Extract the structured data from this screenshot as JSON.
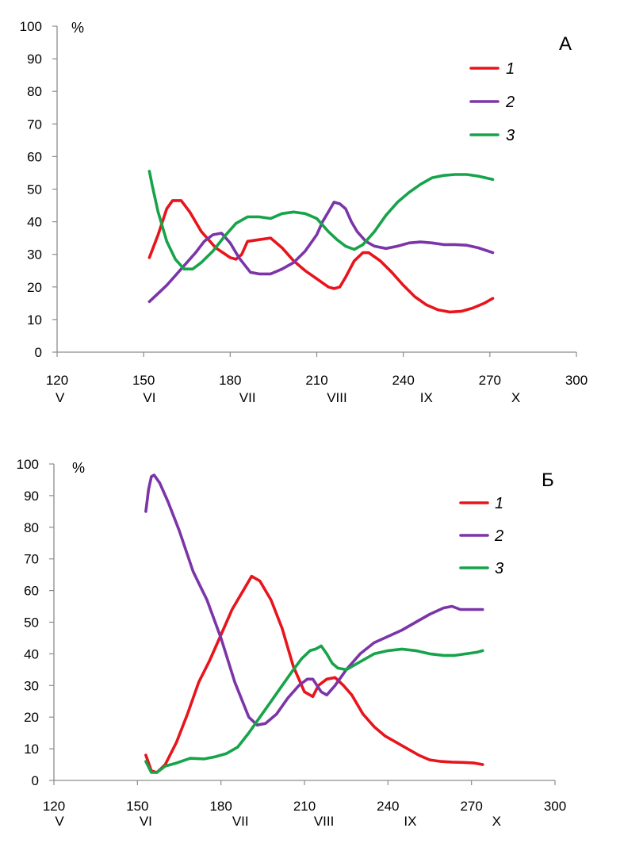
{
  "chart_data": [
    {
      "type": "line",
      "panel_label": "А",
      "ylabel": "%",
      "xlim": [
        120,
        300
      ],
      "ylim": [
        0,
        100
      ],
      "x_ticks": [
        120,
        150,
        180,
        210,
        240,
        270,
        300
      ],
      "y_ticks": [
        0,
        10,
        20,
        30,
        40,
        50,
        60,
        70,
        80,
        90,
        100
      ],
      "month_labels": [
        {
          "text": "V",
          "x": 121
        },
        {
          "text": "VI",
          "x": 152
        },
        {
          "text": "VII",
          "x": 186
        },
        {
          "text": "VIII",
          "x": 217
        },
        {
          "text": "IX",
          "x": 248
        },
        {
          "text": "X",
          "x": 279
        }
      ],
      "grid": false,
      "legend_position": "top-right",
      "series": [
        {
          "name": "1",
          "color": "#e8141c",
          "x": [
            152,
            155,
            158,
            160,
            163,
            166,
            170,
            175,
            180,
            182,
            184,
            186,
            190,
            194,
            198,
            202,
            206,
            210,
            214,
            216,
            218,
            220,
            223,
            226,
            228,
            232,
            236,
            240,
            244,
            248,
            252,
            256,
            260,
            264,
            268,
            271
          ],
          "y": [
            29,
            36,
            44,
            46.5,
            46.5,
            43,
            37,
            32,
            29,
            28.5,
            30,
            34,
            34.5,
            35,
            32,
            28,
            25,
            22.5,
            20,
            19.5,
            20,
            23,
            28,
            30.5,
            30.5,
            28,
            24.5,
            20.5,
            17,
            14.5,
            13,
            12.3,
            12.5,
            13.5,
            15,
            16.5
          ]
        },
        {
          "name": "2",
          "color": "#7b35a8",
          "x": [
            152,
            155,
            158,
            161,
            164,
            168,
            171,
            174,
            177,
            180,
            183,
            187,
            190,
            194,
            198,
            202,
            206,
            210,
            212,
            214,
            216,
            218,
            220,
            222,
            224,
            227,
            230,
            234,
            238,
            242,
            246,
            250,
            254,
            258,
            262,
            266,
            271
          ],
          "y": [
            15.5,
            18,
            20.5,
            23.5,
            26.5,
            30.5,
            34,
            36,
            36.5,
            33.5,
            29,
            24.5,
            24,
            24,
            25.5,
            27.5,
            31,
            36,
            40,
            43,
            46,
            45.5,
            44,
            40,
            37,
            34,
            32.5,
            31.8,
            32.5,
            33.5,
            33.8,
            33.5,
            33,
            33,
            32.8,
            32,
            30.5
          ]
        },
        {
          "name": "3",
          "color": "#16a34a",
          "x": [
            152,
            153,
            155,
            158,
            161,
            164,
            167,
            170,
            174,
            178,
            182,
            186,
            190,
            194,
            198,
            202,
            206,
            210,
            214,
            217,
            220,
            223,
            226,
            230,
            234,
            238,
            242,
            246,
            250,
            254,
            258,
            262,
            266,
            271
          ],
          "y": [
            55.5,
            51,
            43,
            34,
            28.5,
            25.5,
            25.5,
            27.5,
            31,
            35.5,
            39.5,
            41.5,
            41.5,
            41,
            42.5,
            43,
            42.5,
            41,
            37,
            34.5,
            32.5,
            31.5,
            33,
            37,
            42,
            46,
            49,
            51.5,
            53.5,
            54.2,
            54.5,
            54.5,
            54,
            53
          ]
        }
      ]
    },
    {
      "type": "line",
      "panel_label": "Б",
      "ylabel": "%",
      "xlim": [
        120,
        300
      ],
      "ylim": [
        0,
        100
      ],
      "x_ticks": [
        120,
        150,
        180,
        210,
        240,
        270,
        300
      ],
      "y_ticks": [
        0,
        10,
        20,
        30,
        40,
        50,
        60,
        70,
        80,
        90,
        100
      ],
      "month_labels": [
        {
          "text": "V",
          "x": 122
        },
        {
          "text": "VI",
          "x": 153
        },
        {
          "text": "VII",
          "x": 187
        },
        {
          "text": "VIII",
          "x": 217
        },
        {
          "text": "IX",
          "x": 248
        },
        {
          "text": "X",
          "x": 279
        }
      ],
      "grid": false,
      "legend_position": "top-right",
      "series": [
        {
          "name": "1",
          "color": "#e8141c",
          "x": [
            153,
            155,
            157,
            160,
            164,
            168,
            172,
            176,
            180,
            184,
            188,
            191,
            194,
            198,
            202,
            206,
            210,
            213,
            215,
            218,
            221,
            224,
            227,
            231,
            235,
            239,
            243,
            247,
            251,
            255,
            259,
            263,
            267,
            271,
            274
          ],
          "y": [
            8,
            3,
            2.5,
            5,
            12,
            21,
            31,
            38,
            46,
            54,
            60,
            64.5,
            63,
            57,
            48,
            36,
            28,
            26.5,
            30,
            32,
            32.5,
            30,
            27,
            21,
            17,
            14,
            12,
            10,
            8,
            6.5,
            6,
            5.8,
            5.7,
            5.5,
            5
          ]
        },
        {
          "name": "2",
          "color": "#7b35a8",
          "x": [
            153,
            154,
            155,
            156,
            158,
            161,
            165,
            170,
            175,
            180,
            185,
            190,
            193,
            196,
            200,
            204,
            208,
            211,
            213,
            216,
            218,
            221,
            225,
            230,
            235,
            240,
            245,
            250,
            255,
            260,
            263,
            266,
            270,
            274
          ],
          "y": [
            85,
            92,
            96,
            96.5,
            94,
            88,
            79,
            66,
            57,
            45,
            31,
            20,
            17.5,
            18,
            21,
            26,
            30,
            32,
            32,
            28,
            27,
            30,
            35,
            40,
            43.5,
            45.5,
            47.5,
            50,
            52.5,
            54.5,
            55,
            54,
            54,
            54
          ]
        },
        {
          "name": "3",
          "color": "#16a34a",
          "x": [
            153,
            155,
            157,
            160,
            164,
            169,
            174,
            178,
            182,
            186,
            190,
            194,
            198,
            202,
            206,
            209,
            212,
            214,
            216,
            218,
            220,
            222,
            225,
            230,
            235,
            240,
            245,
            250,
            255,
            260,
            264,
            268,
            272,
            274
          ],
          "y": [
            6,
            2.5,
            2.5,
            4.5,
            5.5,
            7,
            6.8,
            7.5,
            8.5,
            10.5,
            15,
            20,
            25,
            30,
            35,
            38.5,
            41,
            41.5,
            42.5,
            40,
            37,
            35.5,
            35,
            37.5,
            40,
            41,
            41.5,
            41,
            40,
            39.5,
            39.5,
            40,
            40.5,
            41
          ]
        }
      ]
    }
  ]
}
